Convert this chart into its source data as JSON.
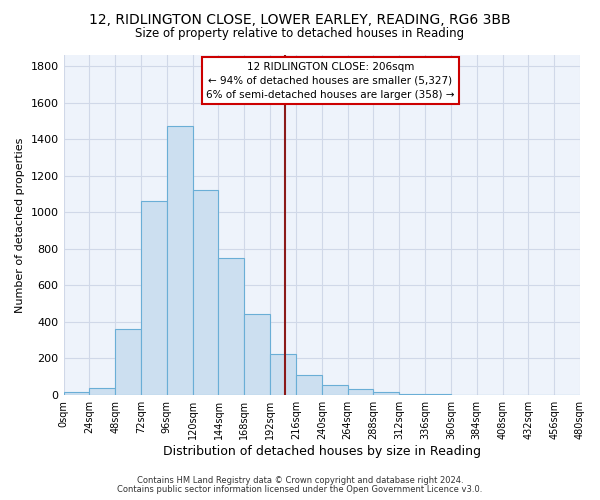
{
  "title1": "12, RIDLINGTON CLOSE, LOWER EARLEY, READING, RG6 3BB",
  "title2": "Size of property relative to detached houses in Reading",
  "xlabel": "Distribution of detached houses by size in Reading",
  "ylabel": "Number of detached properties",
  "footnote1": "Contains HM Land Registry data © Crown copyright and database right 2024.",
  "footnote2": "Contains public sector information licensed under the Open Government Licence v3.0.",
  "bin_edges": [
    0,
    24,
    48,
    72,
    96,
    120,
    144,
    168,
    192,
    216,
    240,
    264,
    288,
    312,
    336,
    360,
    384,
    408,
    432,
    456,
    480
  ],
  "bin_values": [
    15,
    35,
    360,
    1060,
    1470,
    1120,
    750,
    440,
    225,
    110,
    55,
    30,
    15,
    5,
    2,
    1,
    0,
    0,
    0,
    0
  ],
  "bar_facecolor": "#ccdff0",
  "bar_edgecolor": "#6aaed6",
  "vline_x": 206,
  "vline_color": "#8b1a1a",
  "grid_color": "#d0d8e8",
  "background_color": "#eef3fb",
  "annotation_title": "12 RIDLINGTON CLOSE: 206sqm",
  "annotation_line1": "← 94% of detached houses are smaller (5,327)",
  "annotation_line2": "6% of semi-detached houses are larger (358) →",
  "annotation_box_edgecolor": "#cc0000",
  "xlim": [
    0,
    480
  ],
  "ylim": [
    0,
    1860
  ],
  "yticks": [
    0,
    200,
    400,
    600,
    800,
    1000,
    1200,
    1400,
    1600,
    1800
  ],
  "xtick_labels": [
    "0sqm",
    "24sqm",
    "48sqm",
    "72sqm",
    "96sqm",
    "120sqm",
    "144sqm",
    "168sqm",
    "192sqm",
    "216sqm",
    "240sqm",
    "264sqm",
    "288sqm",
    "312sqm",
    "336sqm",
    "360sqm",
    "384sqm",
    "408sqm",
    "432sqm",
    "456sqm",
    "480sqm"
  ]
}
